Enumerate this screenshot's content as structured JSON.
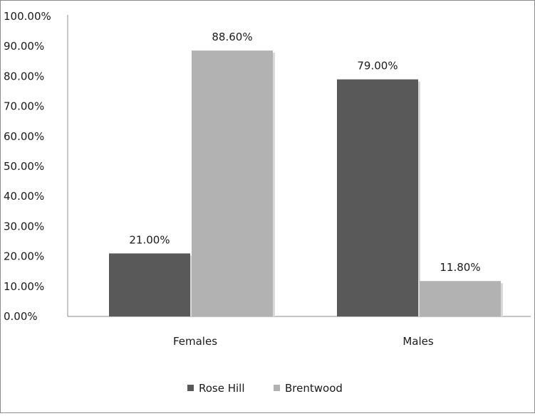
{
  "chart_data": {
    "type": "bar",
    "categories": [
      "Females",
      "Males"
    ],
    "series": [
      {
        "name": "Rose Hill",
        "values": [
          21.0,
          79.0
        ],
        "labels": [
          "21.00%",
          "79.00%"
        ],
        "color": "#595959"
      },
      {
        "name": "Brentwood",
        "values": [
          88.6,
          11.8
        ],
        "labels": [
          "88.60%",
          "11.80%"
        ],
        "color": "#b2b2b2"
      }
    ],
    "ylim": [
      0,
      100
    ],
    "yticks": [
      "0.00%",
      "10.00%",
      "20.00%",
      "30.00%",
      "40.00%",
      "50.00%",
      "60.00%",
      "70.00%",
      "80.00%",
      "90.00%",
      "100.00%"
    ],
    "ytick_values": [
      0,
      10,
      20,
      30,
      40,
      50,
      60,
      70,
      80,
      90,
      100
    ],
    "title": "",
    "xlabel": "",
    "ylabel": "",
    "grid": false,
    "legend_position": "bottom"
  }
}
